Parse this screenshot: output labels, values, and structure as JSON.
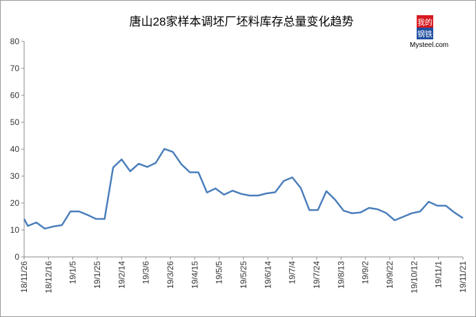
{
  "chart_data": {
    "type": "line",
    "title": "唐山28家样本调坯厂坯料库存总量变化趋势",
    "logo": {
      "line1": "我的",
      "line2": "钢铁",
      "site": "Mysteel.com"
    },
    "x": [
      "18/11/26",
      "18/11/29",
      "18/12/6",
      "18/12/13",
      "18/12/20",
      "18/12/27",
      "19/1/3",
      "19/1/10",
      "19/1/17",
      "19/1/24",
      "19/1/31",
      "19/2/7",
      "19/2/14",
      "19/2/21",
      "19/2/28",
      "19/3/7",
      "19/3/14",
      "19/3/21",
      "19/3/28",
      "19/4/4",
      "19/4/11",
      "19/4/18",
      "19/4/25",
      "19/5/2",
      "19/5/9",
      "19/5/16",
      "19/5/23",
      "19/5/30",
      "19/6/6",
      "19/6/13",
      "19/6/20",
      "19/6/27",
      "19/7/4",
      "19/7/11",
      "19/7/18",
      "19/7/25",
      "19/8/1",
      "19/8/8",
      "19/8/15",
      "19/8/22",
      "19/8/29",
      "19/9/5",
      "19/9/12",
      "19/9/19",
      "19/9/26",
      "19/10/3",
      "19/10/10",
      "19/10/17",
      "19/10/24",
      "19/10/31",
      "19/11/7",
      "19/11/14",
      "19/11/21"
    ],
    "series": [
      {
        "color": "#4a7ebb",
        "values": [
          14.1,
          11.5,
          12.8,
          10.5,
          11.3,
          11.8,
          16.9,
          16.9,
          15.6,
          14.1,
          14.1,
          33.2,
          36.2,
          31.8,
          34.6,
          33.4,
          34.9,
          40.1,
          39.0,
          34.4,
          31.4,
          31.4,
          23.9,
          25.4,
          23.1,
          24.6,
          23.4,
          22.8,
          22.8,
          23.6,
          24.0,
          28.2,
          29.5,
          25.6,
          17.4,
          17.4,
          24.4,
          21.3,
          17.2,
          16.2,
          16.5,
          18.2,
          17.7,
          16.3,
          13.6,
          14.9,
          16.2,
          16.9,
          20.5,
          19.0,
          19.0,
          16.5,
          14.4
        ]
      }
    ],
    "xlim": [
      "18/11/26",
      "19/11/21"
    ],
    "xticks": [
      "18/11/26",
      "18/12/16",
      "19/1/5",
      "19/1/25",
      "19/2/14",
      "19/3/6",
      "19/3/26",
      "19/4/15",
      "19/5/5",
      "19/5/25",
      "19/6/14",
      "19/7/4",
      "19/7/24",
      "19/8/13",
      "19/9/2",
      "19/9/22",
      "19/10/12",
      "19/11/1",
      "19/11/21"
    ],
    "ylim": [
      0,
      80
    ],
    "yticks": [
      0,
      10,
      20,
      30,
      40,
      50,
      60,
      70,
      80
    ],
    "grid": false
  }
}
